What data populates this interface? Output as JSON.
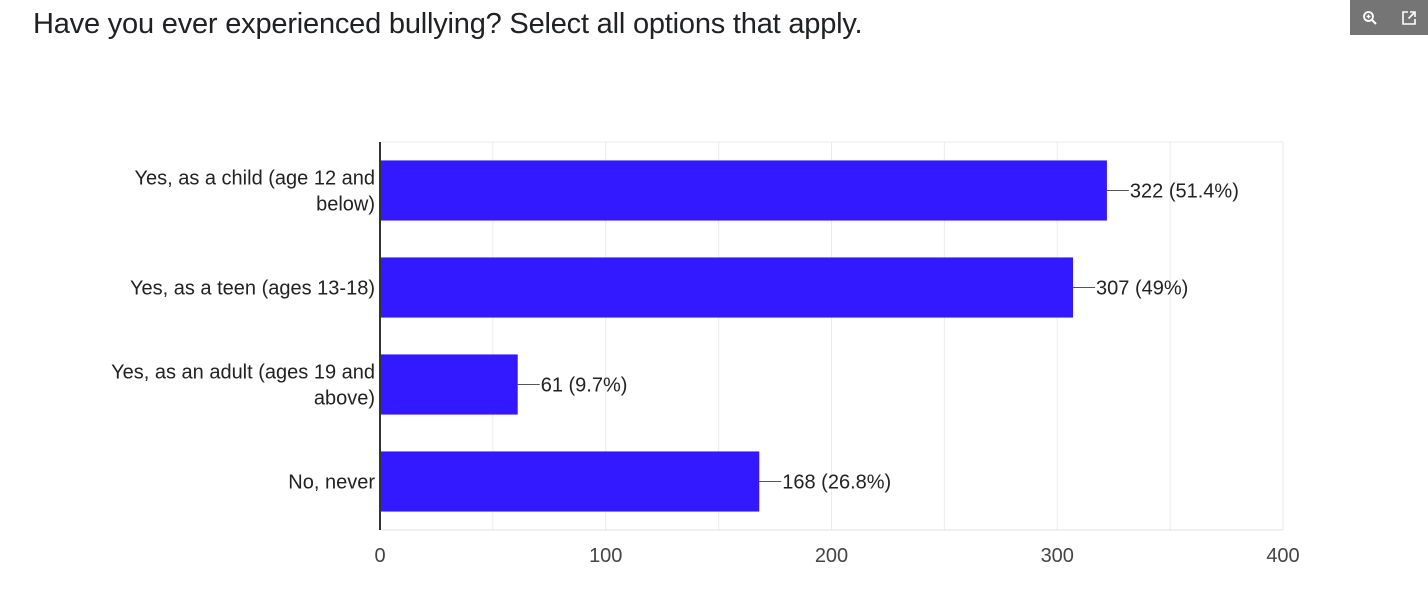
{
  "question": {
    "title": "Have you ever experienced bullying? Select all options that apply."
  },
  "toolbar": {
    "zoom_icon": "zoom-in-icon",
    "open_icon": "open-in-new-icon"
  },
  "chart_data": {
    "type": "bar",
    "orientation": "horizontal",
    "categories": [
      [
        "Yes, as a child (age 12 and",
        "below)"
      ],
      [
        "Yes, as a teen (ages 13-18)"
      ],
      [
        "Yes, as an adult (ages 19 and",
        "above)"
      ],
      [
        "No, never"
      ]
    ],
    "values": [
      322,
      307,
      61,
      168
    ],
    "data_labels": [
      "322 (51.4%)",
      "307 (49%)",
      "61 (9.7%)",
      "168 (26.8%)"
    ],
    "xlim": [
      0,
      400
    ],
    "xticks": [
      0,
      100,
      200,
      300,
      400
    ],
    "grid": true,
    "bar_color": "#3319ff",
    "legend": "none"
  }
}
